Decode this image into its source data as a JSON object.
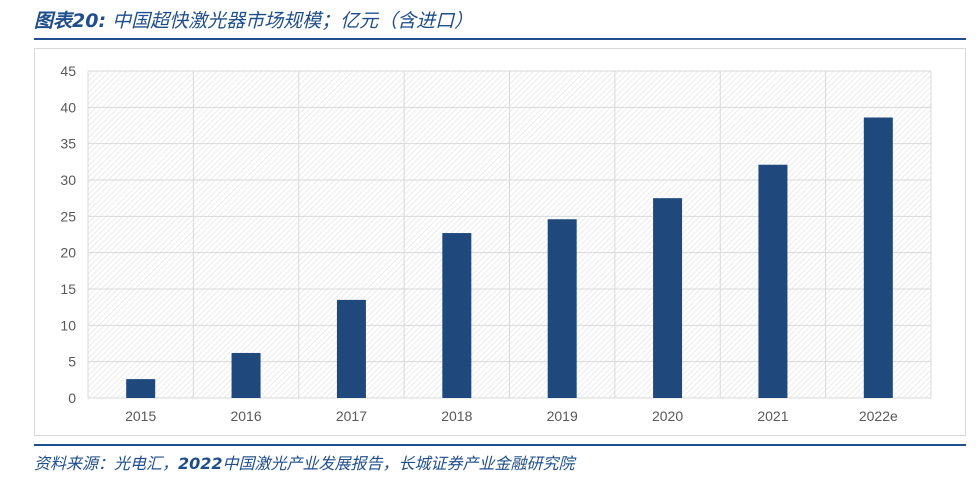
{
  "figure": {
    "label": "图表20:",
    "title": "中国超快激光器市场规模；亿元（含进口）"
  },
  "source": {
    "prefix": "资料来源：光电汇，",
    "year": "2022",
    "text": "中国激光产业发展报告，长城证券产业金融研究院"
  },
  "colors": {
    "bar": "#1f497d",
    "accent": "#1f4e8c",
    "grid": "#d9d9d9"
  },
  "chart_data": {
    "type": "bar",
    "categories": [
      "2015",
      "2016",
      "2017",
      "2018",
      "2019",
      "2020",
      "2021",
      "2022e"
    ],
    "values": [
      2.6,
      6.2,
      13.5,
      22.7,
      24.6,
      27.5,
      32.1,
      38.6
    ],
    "title": "",
    "xlabel": "",
    "ylabel": "",
    "ylim": [
      0,
      45
    ],
    "yticks": [
      0,
      5,
      10,
      15,
      20,
      25,
      30,
      35,
      40,
      45
    ],
    "grid": true,
    "legend": "none"
  }
}
